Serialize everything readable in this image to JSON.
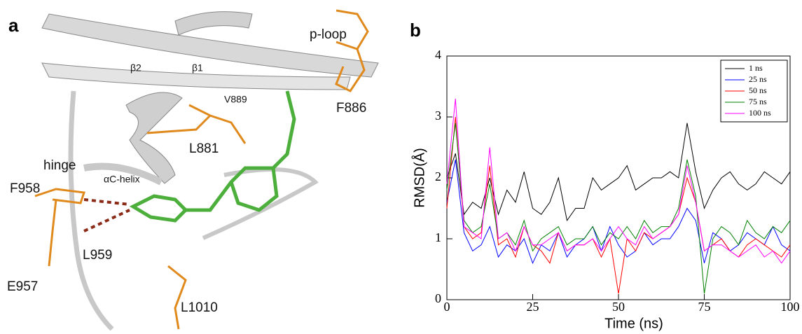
{
  "panel_a": {
    "label": "a",
    "labels": [
      "p-loop",
      "β2",
      "β1",
      "V889",
      "F886",
      "L881",
      "hinge",
      "αC-helix",
      "F958",
      "L959",
      "E957",
      "L1010"
    ]
  },
  "panel_b_label": "b",
  "chart_data": {
    "type": "line",
    "x_label": "Time (ns)",
    "y_label": "RMSD(Å)",
    "x": [
      0,
      2.5,
      5,
      7.5,
      10,
      12.5,
      15,
      17.5,
      20,
      22.5,
      25,
      27.5,
      30,
      32.5,
      35,
      37.5,
      40,
      42.5,
      45,
      47.5,
      50,
      52.5,
      55,
      57.5,
      60,
      62.5,
      65,
      67.5,
      70,
      72.5,
      75,
      77.5,
      80,
      82.5,
      85,
      87.5,
      90,
      92.5,
      95,
      97.5,
      100
    ],
    "series": [
      {
        "name": "1 ns",
        "color": "#000000",
        "values": [
          2.0,
          2.4,
          1.4,
          1.6,
          1.5,
          2.0,
          1.4,
          1.8,
          1.6,
          2.1,
          1.5,
          1.4,
          1.6,
          2.0,
          1.3,
          1.5,
          1.5,
          2.0,
          1.8,
          1.9,
          2.0,
          2.2,
          1.8,
          1.9,
          2.0,
          2.0,
          2.1,
          2.0,
          2.9,
          2.1,
          1.5,
          1.8,
          2.0,
          2.1,
          1.9,
          1.8,
          1.9,
          2.1,
          2.0,
          1.9,
          2.1
        ]
      },
      {
        "name": "25 ns",
        "color": "#0000ff",
        "values": [
          1.6,
          2.3,
          1.1,
          0.8,
          0.9,
          1.2,
          0.7,
          0.9,
          0.8,
          1.0,
          0.6,
          0.9,
          0.8,
          1.1,
          0.7,
          0.9,
          1.0,
          1.2,
          0.8,
          1.2,
          0.9,
          0.7,
          0.8,
          1.1,
          0.9,
          1.0,
          1.0,
          1.2,
          1.5,
          1.3,
          0.6,
          1.1,
          1.0,
          0.8,
          0.9,
          1.1,
          1.0,
          0.9,
          1.2,
          0.9,
          0.8
        ]
      },
      {
        "name": "50 ns",
        "color": "#ff0000",
        "values": [
          1.5,
          3.0,
          1.2,
          1.0,
          1.1,
          2.2,
          0.9,
          1.0,
          0.7,
          1.2,
          0.9,
          0.8,
          0.6,
          1.1,
          0.8,
          0.9,
          0.9,
          1.0,
          0.7,
          1.0,
          0.1,
          1.0,
          0.8,
          1.1,
          1.0,
          1.1,
          1.2,
          1.4,
          2.0,
          1.6,
          0.8,
          0.9,
          1.0,
          0.8,
          0.7,
          0.9,
          1.0,
          0.9,
          0.8,
          0.7,
          0.9
        ]
      },
      {
        "name": "75 ns",
        "color": "#008000",
        "values": [
          1.8,
          2.9,
          1.3,
          1.1,
          1.2,
          1.9,
          1.0,
          1.1,
          0.9,
          1.3,
          0.8,
          1.0,
          1.1,
          1.2,
          0.9,
          1.0,
          1.0,
          1.2,
          0.9,
          1.1,
          1.0,
          1.2,
          1.0,
          1.3,
          1.1,
          1.2,
          1.2,
          1.5,
          2.3,
          1.7,
          0.1,
          1.0,
          1.2,
          1.1,
          0.9,
          1.3,
          1.1,
          1.0,
          1.2,
          1.1,
          1.3
        ]
      },
      {
        "name": "100 ns",
        "color": "#ff00ff",
        "values": [
          1.9,
          3.3,
          1.2,
          1.1,
          1.0,
          2.5,
          1.0,
          1.1,
          0.8,
          1.2,
          0.9,
          0.9,
          1.0,
          1.1,
          0.8,
          0.9,
          0.9,
          1.0,
          0.8,
          1.0,
          1.2,
          1.0,
          0.9,
          1.2,
          1.0,
          1.1,
          1.2,
          1.4,
          2.2,
          1.6,
          0.8,
          0.9,
          0.9,
          0.8,
          0.7,
          0.8,
          0.9,
          0.7,
          0.8,
          0.6,
          0.8
        ]
      }
    ],
    "xlim": [
      0,
      100
    ],
    "xticks": [
      0,
      25,
      50,
      75,
      100
    ],
    "ylim": [
      0,
      4
    ],
    "yticks": [
      0,
      1,
      2,
      3,
      4
    ],
    "legend": "upper right"
  }
}
